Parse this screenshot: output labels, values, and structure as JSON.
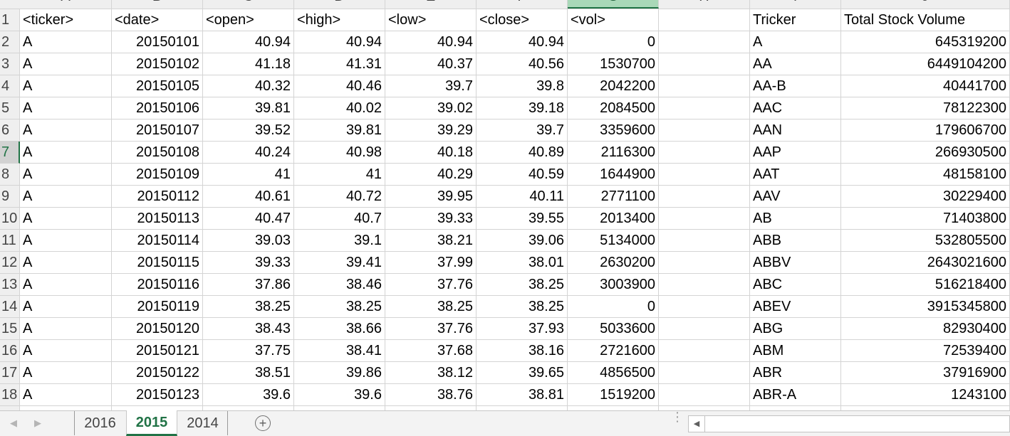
{
  "columns": [
    "A",
    "B",
    "C",
    "D",
    "E",
    "F",
    "G",
    "H",
    "I",
    "J"
  ],
  "selected_column": "G",
  "selected_row": "7",
  "header_row": [
    "<ticker>",
    "<date>",
    "<open>",
    "<high>",
    "<low>",
    "<close>",
    "<vol>",
    "",
    "Tricker",
    "Total Stock Volume"
  ],
  "rows": [
    {
      "n": "2",
      "cells": [
        "A",
        "20150101",
        "40.94",
        "40.94",
        "40.94",
        "40.94",
        "0",
        "",
        "A",
        "645319200"
      ]
    },
    {
      "n": "3",
      "cells": [
        "A",
        "20150102",
        "41.18",
        "41.31",
        "40.37",
        "40.56",
        "1530700",
        "",
        "AA",
        "6449104200"
      ]
    },
    {
      "n": "4",
      "cells": [
        "A",
        "20150105",
        "40.32",
        "40.46",
        "39.7",
        "39.8",
        "2042200",
        "",
        "AA-B",
        "40441700"
      ]
    },
    {
      "n": "5",
      "cells": [
        "A",
        "20150106",
        "39.81",
        "40.02",
        "39.02",
        "39.18",
        "2084500",
        "",
        "AAC",
        "78122300"
      ]
    },
    {
      "n": "6",
      "cells": [
        "A",
        "20150107",
        "39.52",
        "39.81",
        "39.29",
        "39.7",
        "3359600",
        "",
        "AAN",
        "179606700"
      ]
    },
    {
      "n": "7",
      "cells": [
        "A",
        "20150108",
        "40.24",
        "40.98",
        "40.18",
        "40.89",
        "2116300",
        "",
        "AAP",
        "266930500"
      ]
    },
    {
      "n": "8",
      "cells": [
        "A",
        "20150109",
        "41",
        "41",
        "40.29",
        "40.59",
        "1644900",
        "",
        "AAT",
        "48158100"
      ]
    },
    {
      "n": "9",
      "cells": [
        "A",
        "20150112",
        "40.61",
        "40.72",
        "39.95",
        "40.11",
        "2771100",
        "",
        "AAV",
        "30229400"
      ]
    },
    {
      "n": "10",
      "cells": [
        "A",
        "20150113",
        "40.47",
        "40.7",
        "39.33",
        "39.55",
        "2013400",
        "",
        "AB",
        "71403800"
      ]
    },
    {
      "n": "11",
      "cells": [
        "A",
        "20150114",
        "39.03",
        "39.1",
        "38.21",
        "39.06",
        "5134000",
        "",
        "ABB",
        "532805500"
      ]
    },
    {
      "n": "12",
      "cells": [
        "A",
        "20150115",
        "39.33",
        "39.41",
        "37.99",
        "38.01",
        "2630200",
        "",
        "ABBV",
        "2643021600"
      ]
    },
    {
      "n": "13",
      "cells": [
        "A",
        "20150116",
        "37.86",
        "38.46",
        "37.76",
        "38.25",
        "3003900",
        "",
        "ABC",
        "516218400"
      ]
    },
    {
      "n": "14",
      "cells": [
        "A",
        "20150119",
        "38.25",
        "38.25",
        "38.25",
        "38.25",
        "0",
        "",
        "ABEV",
        "3915345800"
      ]
    },
    {
      "n": "15",
      "cells": [
        "A",
        "20150120",
        "38.43",
        "38.66",
        "37.76",
        "37.93",
        "5033600",
        "",
        "ABG",
        "82930400"
      ]
    },
    {
      "n": "16",
      "cells": [
        "A",
        "20150121",
        "37.75",
        "38.41",
        "37.68",
        "38.16",
        "2721600",
        "",
        "ABM",
        "72539400"
      ]
    },
    {
      "n": "17",
      "cells": [
        "A",
        "20150122",
        "38.51",
        "39.86",
        "38.12",
        "39.65",
        "4856500",
        "",
        "ABR",
        "37916900"
      ]
    },
    {
      "n": "18",
      "cells": [
        "A",
        "20150123",
        "39.6",
        "39.6",
        "38.76",
        "38.81",
        "1519200",
        "",
        "ABR-A",
        "1243100"
      ]
    }
  ],
  "sheet_tabs": [
    {
      "label": "2016",
      "active": false
    },
    {
      "label": "2015",
      "active": true
    },
    {
      "label": "2014",
      "active": false
    }
  ],
  "icons": {
    "prev_sheet": "◀",
    "next_sheet": "▶",
    "add_sheet": "+",
    "scroll_left": "◀",
    "more": "⋮"
  },
  "colors": {
    "accent": "#217346",
    "selected_header": "#a9d8b8",
    "gridline": "#d4d4d4"
  }
}
